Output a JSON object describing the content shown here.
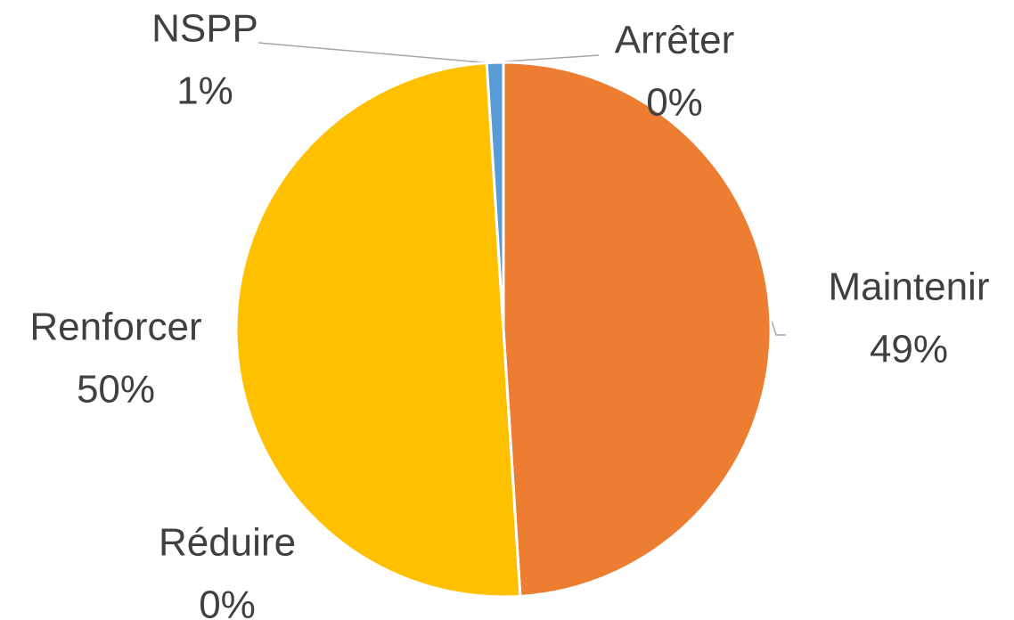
{
  "chart_data": {
    "type": "pie",
    "categories": [
      "Maintenir",
      "Réduire",
      "Renforcer",
      "NSPP",
      "Arrêter"
    ],
    "values": [
      49,
      0,
      50,
      1,
      0
    ],
    "value_labels": [
      "49%",
      "0%",
      "50%",
      "1%",
      "0%"
    ],
    "colors": [
      "#ED7D31",
      "#A5A5A5",
      "#FFC000",
      "#5B9BD5",
      "#4472C4"
    ]
  }
}
